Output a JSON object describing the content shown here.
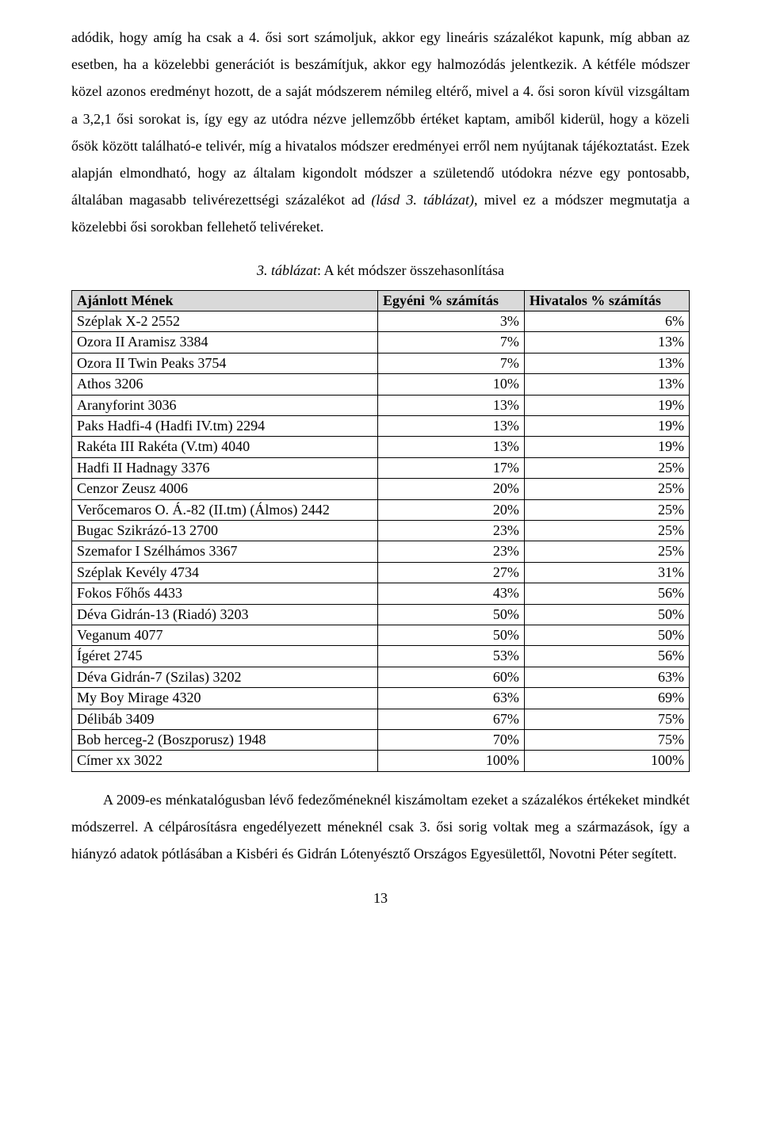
{
  "para1": "adódik, hogy amíg ha csak a 4. ősi sort számoljuk, akkor egy lineáris százalékot kapunk, míg abban az esetben, ha a közelebbi generációt is beszámítjuk, akkor egy halmozódás jelentkezik. A kétféle módszer közel azonos eredményt hozott, de a saját módszerem némileg eltérő, mivel a 4. ősi soron kívül vizsgáltam a 3,2,1 ősi sorokat is, így egy az utódra nézve jellemzőbb értéket kaptam, amiből kiderül, hogy a közeli ősök között található-e telivér, míg a hivatalos módszer eredményei erről nem nyújtanak tájékoztatást. Ezek alapján elmondható, hogy az általam kigondolt módszer a születendő utódokra nézve egy pontosabb, általában magasabb telivérezettségi százalékot ad ",
  "para1_ital": "(lásd 3. táblázat)",
  "para1_tail": ", mivel ez a módszer megmutatja a közelebbi ősi sorokban fellehető telivéreket.",
  "caption_prefix": "3. táblázat",
  "caption_rest": ": A két módszer összehasonlítása",
  "table": {
    "columns": [
      "Ajánlott Mének",
      "Egyéni % számítás",
      "Hivatalos % számítás"
    ],
    "rows": [
      [
        "Széplak X-2  2552",
        "3%",
        "6%"
      ],
      [
        "Ozora II Aramisz  3384",
        "7%",
        "13%"
      ],
      [
        "Ozora II Twin Peaks  3754",
        "7%",
        "13%"
      ],
      [
        "Athos  3206",
        "10%",
        "13%"
      ],
      [
        "Aranyforint  3036",
        "13%",
        "19%"
      ],
      [
        "Paks Hadfi-4 (Hadfi IV.tm)  2294",
        "13%",
        "19%"
      ],
      [
        "Rakéta III Rakéta (V.tm)  4040",
        "13%",
        "19%"
      ],
      [
        "Hadfi II Hadnagy  3376",
        "17%",
        "25%"
      ],
      [
        "Cenzor Zeusz  4006",
        "20%",
        "25%"
      ],
      [
        "Verőcemaros O. Á.-82 (II.tm) (Álmos)  2442",
        "20%",
        "25%"
      ],
      [
        "Bugac Szikrázó-13  2700",
        "23%",
        "25%"
      ],
      [
        "Szemafor I Szélhámos  3367",
        "23%",
        "25%"
      ],
      [
        "Széplak Kevély  4734",
        "27%",
        "31%"
      ],
      [
        "Fokos Főhős  4433",
        "43%",
        "56%"
      ],
      [
        "Déva Gidrán-13 (Riadó)  3203",
        "50%",
        "50%"
      ],
      [
        "Veganum  4077",
        "50%",
        "50%"
      ],
      [
        "Ígéret  2745",
        "53%",
        "56%"
      ],
      [
        "Déva Gidrán-7 (Szilas)  3202",
        "60%",
        "63%"
      ],
      [
        "My Boy Mirage  4320",
        "63%",
        "69%"
      ],
      [
        "Délibáb  3409",
        "67%",
        "75%"
      ],
      [
        "Bob herceg-2 (Boszporusz)  1948",
        "70%",
        "75%"
      ],
      [
        "Címer xx  3022",
        "100%",
        "100%"
      ]
    ]
  },
  "para2": "A 2009-es ménkatalógusban lévő fedezőméneknél kiszámoltam ezeket a százalékos értékeket mindkét módszerrel. A célpárosításra engedélyezett méneknél csak 3. ősi sorig voltak meg a származások, így a hiányzó adatok pótlásában a Kisbéri és Gidrán Lótenyésztő Országos Egyesülettől, Novotni Péter segített.",
  "page_number": "13"
}
